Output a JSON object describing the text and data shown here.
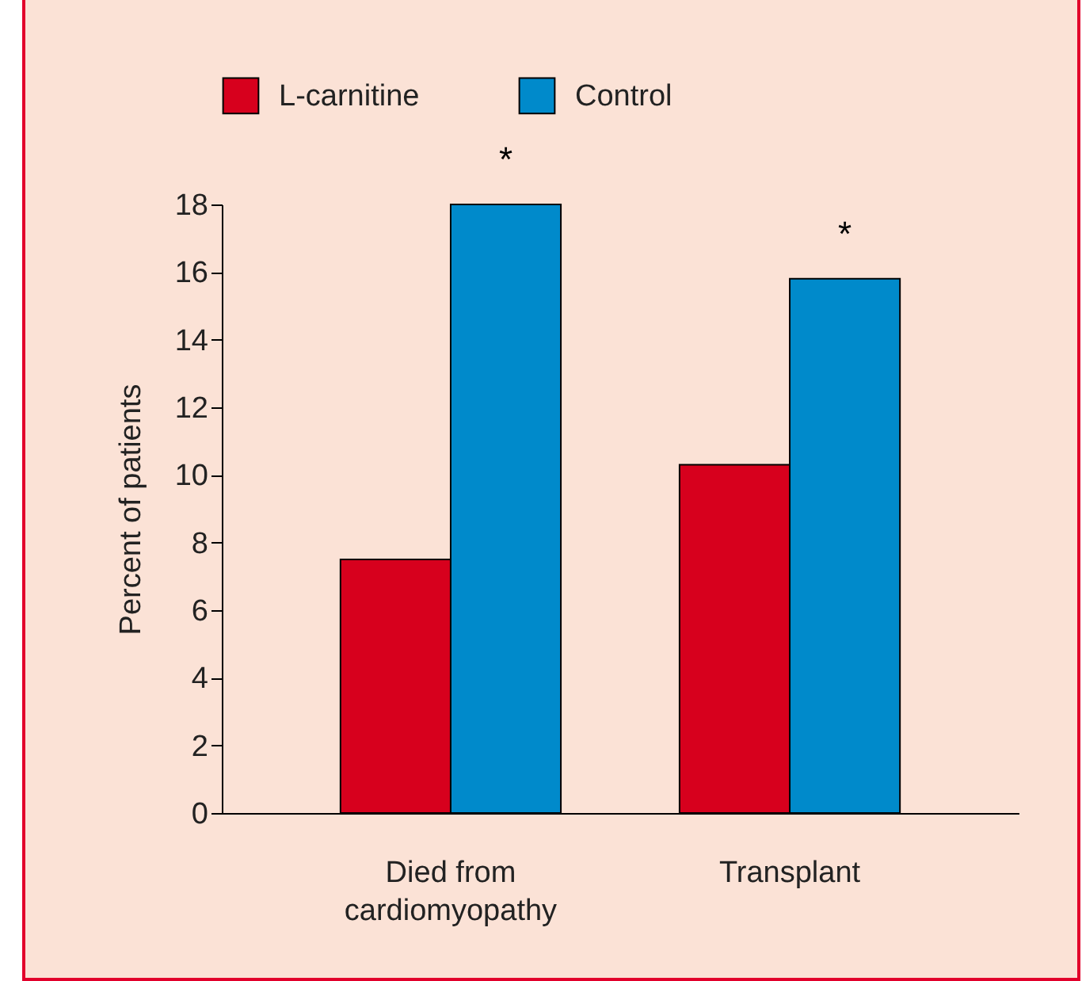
{
  "chart_data": {
    "type": "bar",
    "ylabel": "Percent of patients",
    "categories": [
      "Died from\ncardiomyopathy",
      "Transplant"
    ],
    "series": [
      {
        "name": "L-carnitine",
        "color": "#d7001d",
        "values": [
          7.5,
          10.3
        ]
      },
      {
        "name": "Control",
        "color": "#008acb",
        "values": [
          18,
          15.8
        ]
      }
    ],
    "ylim": [
      0,
      18
    ],
    "yticks": [
      0,
      2,
      4,
      6,
      8,
      10,
      12,
      14,
      16,
      18
    ],
    "grid": false,
    "legend": "top",
    "annotations": [
      {
        "text": "*",
        "x": "Died from\ncardiomyopathy",
        "y": 18
      },
      {
        "text": "*",
        "x": "Transplant",
        "y": 15.8
      }
    ]
  }
}
